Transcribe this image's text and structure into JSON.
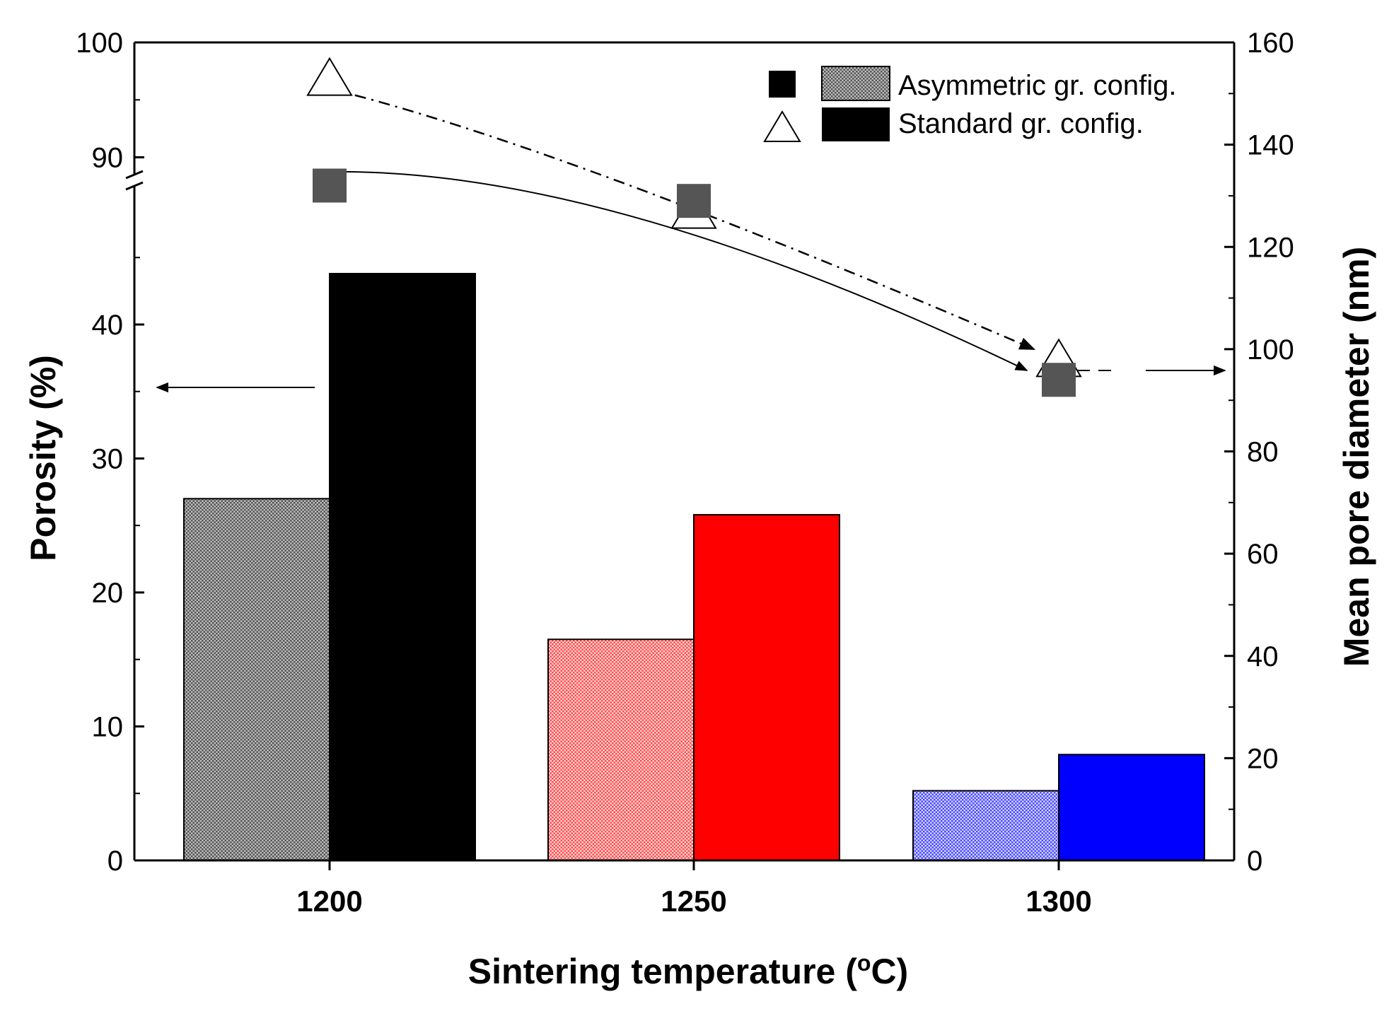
{
  "chart_data": {
    "type": "bar",
    "categories": [
      "1200",
      "1250",
      "1300"
    ],
    "xlabel": "Sintering temperature (°C)",
    "xlabel_parts": {
      "prefix": "Sintering temperature (",
      "sup": "o",
      "suffix": "C)"
    },
    "left_axis": {
      "label": "Porosity (%)",
      "ylim": [
        0,
        100
      ],
      "axis_break": "between 50 and 88",
      "tick_labels": [
        "0",
        "10",
        "20",
        "30",
        "40",
        "90",
        "100"
      ]
    },
    "right_axis": {
      "label": "Mean pore diameter (nm)",
      "ylim": [
        0,
        160
      ],
      "tick_labels": [
        "0",
        "20",
        "40",
        "60",
        "80",
        "100",
        "120",
        "140",
        "160"
      ]
    },
    "series": [
      {
        "name": "Asymmetric gr. config. (porosity)",
        "kind": "bar",
        "axis": "left",
        "pattern": "hatched",
        "values": [
          27,
          16.5,
          5.2
        ]
      },
      {
        "name": "Standard gr. config. (porosity)",
        "kind": "bar",
        "axis": "left",
        "pattern": "solid",
        "values": [
          43.8,
          25.8,
          7.9
        ]
      },
      {
        "name": "Asymmetric gr. config. (pore diameter)",
        "kind": "scatter",
        "axis": "right",
        "marker": "square",
        "values": [
          132,
          129,
          94
        ]
      },
      {
        "name": "Standard gr. config. (pore diameter)",
        "kind": "scatter",
        "axis": "right",
        "marker": "triangle",
        "values": [
          153,
          127,
          98
        ]
      }
    ],
    "bar_colors": [
      "#8a8a8a",
      "#ff0000",
      "#0000ff"
    ],
    "standard_1200_color": "#000000",
    "marker_color": "#555555",
    "legend": {
      "position": "top-right",
      "entries": [
        "Asymmetric gr. config.",
        "Standard gr. config."
      ]
    },
    "annotations": [
      "arrow pointing left toward porosity axis",
      "arrow pointing right toward pore diameter axis"
    ]
  }
}
